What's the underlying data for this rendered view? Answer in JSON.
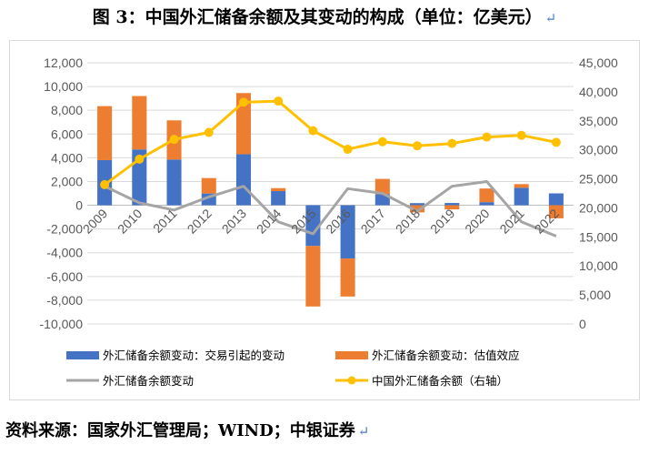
{
  "page": {
    "title": "图 3：中国外汇储备余额及其变动的构成（单位：亿美元）",
    "title_mark": "↵",
    "source": "资料来源：国家外汇管理局；WIND；中银证券",
    "source_mark": "↵"
  },
  "chart_data": {
    "type": "bar",
    "categories": [
      "2009",
      "2010",
      "2011",
      "2012",
      "2013",
      "2014",
      "2015",
      "2016",
      "2017",
      "2018",
      "2019",
      "2020",
      "2021",
      "2022"
    ],
    "series": [
      {
        "name": "外汇储备余额变动：交易引起的变动",
        "kind": "bar",
        "axis": "left",
        "color": "#4472c4",
        "values": [
          3800,
          4700,
          3850,
          990,
          4300,
          1190,
          -3430,
          -4490,
          930,
          180,
          190,
          260,
          1470,
          1000
        ]
      },
      {
        "name": "外汇储备余额变动：估值效应",
        "kind": "bar",
        "axis": "left",
        "color": "#ed7d31",
        "values": [
          4550,
          4500,
          3300,
          1300,
          5150,
          250,
          -5100,
          -3200,
          1290,
          -600,
          -350,
          1150,
          310,
          -1100
        ]
      },
      {
        "name": "外汇储备余额变动",
        "kind": "line",
        "axis": "left",
        "color": "#a5a5a5",
        "values": [
          1600,
          200,
          -400,
          700,
          1600,
          -1400,
          -2400,
          1400,
          1000,
          -500,
          1600,
          2000,
          -1400,
          -2600
        ]
      },
      {
        "name": "中国外汇储备余额（右轴）",
        "kind": "line",
        "axis": "right",
        "color": "#ffc000",
        "values": [
          24000,
          28400,
          31800,
          33000,
          38200,
          38400,
          33300,
          30100,
          31400,
          30700,
          31100,
          32200,
          32500,
          31300
        ]
      }
    ],
    "y_left": {
      "min": -10000,
      "max": 12000,
      "step": 2000,
      "tick_labels": [
        "-10,000",
        "-8,000",
        "-6,000",
        "-4,000",
        "-2,000",
        "0",
        "2,000",
        "4,000",
        "6,000",
        "8,000",
        "10,000",
        "12,000"
      ]
    },
    "y_right": {
      "min": 0,
      "max": 45000,
      "step": 5000,
      "tick_labels": [
        "0",
        "5,000",
        "10,000",
        "15,000",
        "20,000",
        "25,000",
        "30,000",
        "35,000",
        "40,000",
        "45,000"
      ]
    },
    "grid": true,
    "legend_position": "bottom",
    "stacked_bars": true
  }
}
